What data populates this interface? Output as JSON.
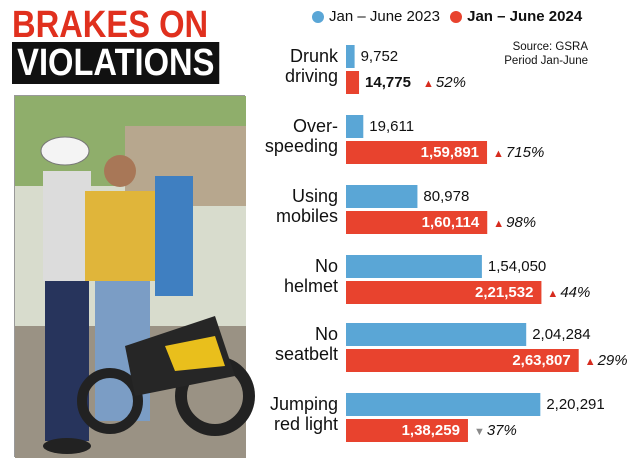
{
  "headline": {
    "line1": "BRAKES ON",
    "line2": "VIOLATIONS"
  },
  "legend": [
    {
      "label": "Jan – June 2023",
      "color": "#5aa6d6"
    },
    {
      "label": "Jan – June 2024",
      "color": "#e8432e"
    }
  ],
  "source": {
    "line1": "Source: GSRA",
    "line2": "Period Jan-June"
  },
  "colors": {
    "blue": "#5aa6d6",
    "red": "#e8432e",
    "up": "#d62b1e",
    "down": "#8a8a8a"
  },
  "photo": {
    "icon": "traffic-police-photo"
  },
  "chart_data": {
    "type": "bar",
    "orientation": "horizontal",
    "categories": [
      "Drunk driving",
      "Over-speeding",
      "Using mobiles",
      "No helmet",
      "No seatbelt",
      "Jumping red light"
    ],
    "category_lines": [
      [
        "Drunk",
        "driving"
      ],
      [
        "Over-",
        "speeding"
      ],
      [
        "Using",
        "mobiles"
      ],
      [
        "No",
        "helmet"
      ],
      [
        "No",
        "seatbelt"
      ],
      [
        "Jumping",
        "red light"
      ]
    ],
    "series": [
      {
        "name": "Jan – June 2023",
        "values": [
          9752,
          19611,
          80978,
          154050,
          204284,
          220291
        ],
        "labels": [
          "9,752",
          "19,611",
          "80,978",
          "1,54,050",
          "2,04,284",
          "2,20,291"
        ]
      },
      {
        "name": "Jan – June 2024",
        "values": [
          14775,
          159891,
          160114,
          221532,
          263807,
          138259
        ],
        "labels": [
          "14,775",
          "1,59,891",
          "1,60,114",
          "2,21,532",
          "2,63,807",
          "1,38,259"
        ]
      }
    ],
    "changes": [
      "52%",
      "715%",
      "98%",
      "44%",
      "29%",
      "37%"
    ],
    "change_direction": [
      "up",
      "up",
      "up",
      "up",
      "up",
      "down"
    ],
    "xlim": [
      0,
      280000
    ]
  }
}
